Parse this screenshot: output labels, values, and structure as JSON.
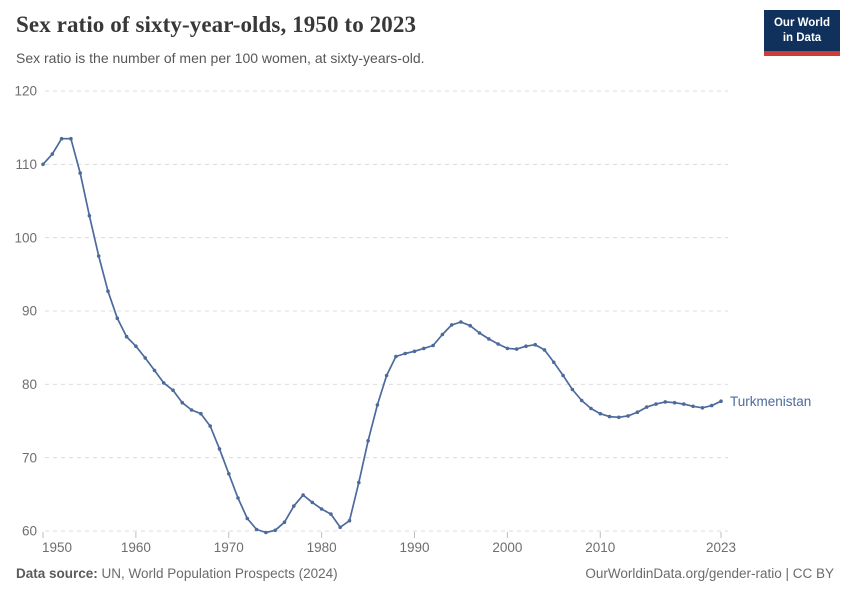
{
  "header": {
    "title": "Sex ratio of sixty-year-olds, 1950 to 2023",
    "subtitle": "Sex ratio is the number of men per 100 women, at sixty-years-old.",
    "logo": {
      "line1": "Our World",
      "line2": "in Data"
    }
  },
  "footer": {
    "source_label": "Data source:",
    "source_value": "UN, World Population Prospects (2024)",
    "rights": "OurWorldinData.org/gender-ratio | CC BY"
  },
  "colors": {
    "line": "#4C6A9C",
    "series_label": "#4C6A9C",
    "grid": "#DCDCDC",
    "axis_text": "#6E6E6E",
    "tick": "#BDBDBD",
    "title_text": "#383838",
    "subtitle_text": "#575757",
    "footer_text": "#6B6B6B",
    "logo_bg": "#10315B",
    "logo_bar": "#CF3B36"
  },
  "chart_data": {
    "type": "line",
    "title": "Sex ratio of sixty-year-olds, 1950 to 2023",
    "subtitle": "Sex ratio is the number of men per 100 women, at sixty-years-old.",
    "xlabel": "",
    "ylabel": "",
    "xlim": [
      1950,
      2023
    ],
    "ylim": [
      60,
      120
    ],
    "x_ticks": [
      1950,
      1960,
      1970,
      1980,
      1990,
      2000,
      2010,
      2023
    ],
    "y_ticks": [
      60,
      70,
      80,
      90,
      100,
      110,
      120
    ],
    "grid": "horizontal-dashed",
    "legend": "inline-end-label",
    "series": [
      {
        "name": "Turkmenistan",
        "color": "#4C6A9C",
        "years": [
          1950,
          1951,
          1952,
          1953,
          1954,
          1955,
          1956,
          1957,
          1958,
          1959,
          1960,
          1961,
          1962,
          1963,
          1964,
          1965,
          1966,
          1967,
          1968,
          1969,
          1970,
          1971,
          1972,
          1973,
          1974,
          1975,
          1976,
          1977,
          1978,
          1979,
          1980,
          1981,
          1982,
          1983,
          1984,
          1985,
          1986,
          1987,
          1988,
          1989,
          1990,
          1991,
          1992,
          1993,
          1994,
          1995,
          1996,
          1997,
          1998,
          1999,
          2000,
          2001,
          2002,
          2003,
          2004,
          2005,
          2006,
          2007,
          2008,
          2009,
          2010,
          2011,
          2012,
          2013,
          2014,
          2015,
          2016,
          2017,
          2018,
          2019,
          2020,
          2021,
          2022,
          2023
        ],
        "values": [
          110.0,
          111.4,
          113.5,
          113.5,
          108.8,
          103.0,
          97.5,
          92.7,
          89.0,
          86.5,
          85.2,
          83.6,
          81.9,
          80.2,
          79.2,
          77.5,
          76.5,
          76.0,
          74.3,
          71.2,
          67.8,
          64.5,
          61.7,
          60.2,
          59.8,
          60.1,
          61.2,
          63.4,
          64.9,
          63.9,
          63.0,
          62.3,
          60.5,
          61.4,
          66.6,
          72.3,
          77.2,
          81.2,
          83.8,
          84.2,
          84.5,
          84.9,
          85.3,
          86.8,
          88.1,
          88.5,
          88.0,
          87.0,
          86.2,
          85.5,
          84.9,
          84.8,
          85.2,
          85.4,
          84.7,
          83.0,
          81.2,
          79.3,
          77.8,
          76.7,
          76.0,
          75.6,
          75.5,
          75.7,
          76.2,
          76.9,
          77.3,
          77.6,
          77.5,
          77.3,
          77.0,
          76.8,
          77.1,
          77.7
        ]
      }
    ]
  }
}
